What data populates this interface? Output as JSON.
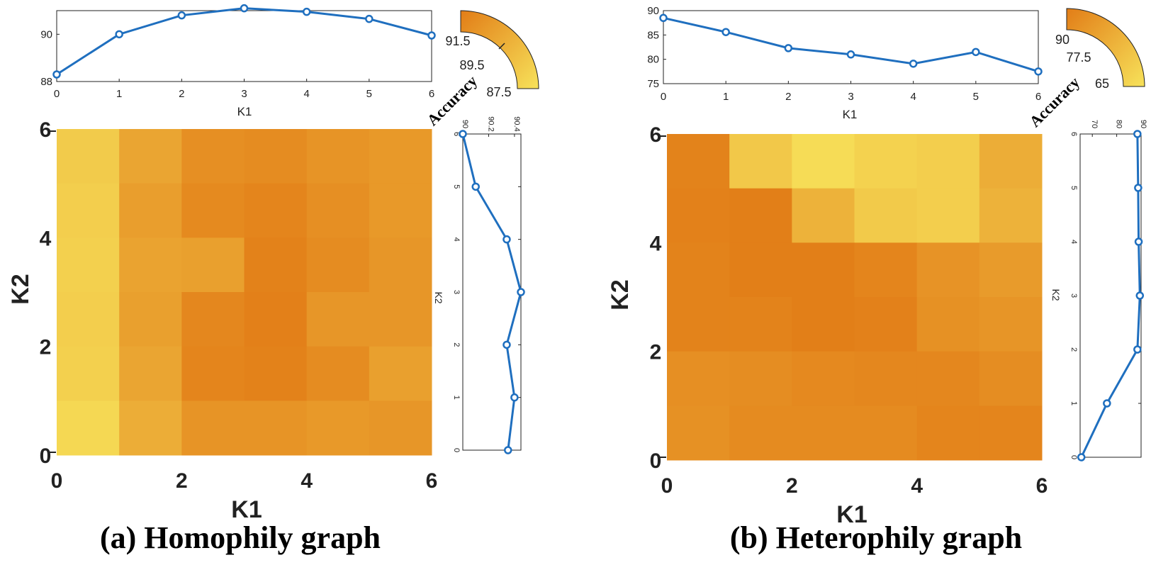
{
  "chart_data": [
    {
      "type": "heatmap",
      "panel": "a",
      "caption": "(a) Homophily graph",
      "xlabel": "K1",
      "ylabel": "K2",
      "x_ticks": [
        "0",
        "2",
        "4",
        "6"
      ],
      "y_ticks": [
        "0",
        "2",
        "4",
        "6"
      ],
      "color_range": [
        87.5,
        91.5
      ],
      "colorbar": {
        "label": "Accuracy",
        "ticks": [
          "91.5",
          "89.5",
          "87.5"
        ]
      },
      "grid": [
        [
          88.4,
          89.9,
          90.8,
          90.9,
          90.6,
          90.4
        ],
        [
          88.3,
          90.2,
          91.0,
          91.2,
          90.8,
          90.4
        ],
        [
          88.2,
          90.0,
          90.1,
          91.3,
          90.9,
          90.5
        ],
        [
          88.3,
          90.1,
          91.1,
          91.4,
          90.5,
          90.5
        ],
        [
          88.2,
          89.9,
          91.2,
          91.3,
          90.9,
          90.1
        ],
        [
          87.9,
          89.6,
          90.6,
          90.6,
          90.4,
          90.5
        ]
      ],
      "top_line": {
        "xlabel": "K1",
        "x": [
          0,
          1,
          2,
          3,
          4,
          5,
          6
        ],
        "y": [
          88.3,
          90.0,
          90.8,
          91.1,
          90.95,
          90.65,
          89.95
        ],
        "ylim": [
          88,
          91
        ],
        "y_ticks": [
          "88",
          "90"
        ],
        "x_ticks": [
          "0",
          "1",
          "2",
          "3",
          "4",
          "5",
          "6"
        ]
      },
      "side_line": {
        "ylabel": "K2",
        "k2": [
          0,
          1,
          2,
          3,
          4,
          5,
          6
        ],
        "acc": [
          90.35,
          90.4,
          90.34,
          90.45,
          90.34,
          90.1,
          90.0
        ],
        "alim": [
          90.0,
          90.45
        ],
        "a_ticks": [
          "90",
          "90.2",
          "90.4"
        ],
        "k_ticks": [
          "0",
          "1",
          "2",
          "3",
          "4",
          "5",
          "6"
        ]
      }
    },
    {
      "type": "heatmap",
      "panel": "b",
      "caption": "(b) Heterophily graph",
      "xlabel": "K1",
      "ylabel": "K2",
      "x_ticks": [
        "0",
        "2",
        "4",
        "6"
      ],
      "y_ticks": [
        "0",
        "2",
        "4",
        "6"
      ],
      "color_range": [
        65,
        90
      ],
      "colorbar": {
        "label": "Accuracy",
        "ticks": [
          "90",
          "77.5",
          "65"
        ]
      },
      "grid": [
        [
          88.5,
          71.5,
          66.5,
          69.0,
          70.0,
          78.0
        ],
        [
          89.0,
          89.5,
          77.0,
          71.0,
          70.0,
          77.0
        ],
        [
          88.5,
          89.5,
          89.5,
          88.0,
          84.5,
          82.5
        ],
        [
          88.5,
          88.5,
          89.5,
          89.0,
          85.0,
          84.0
        ],
        [
          85.5,
          86.0,
          87.0,
          87.5,
          87.5,
          86.0
        ],
        [
          85.0,
          86.5,
          86.5,
          86.5,
          88.0,
          88.0
        ]
      ],
      "top_line": {
        "xlabel": "K1",
        "x": [
          0,
          1,
          2,
          3,
          4,
          5,
          6
        ],
        "y": [
          88.5,
          85.6,
          82.3,
          81.0,
          79.1,
          81.5,
          77.5
        ],
        "ylim": [
          75,
          90
        ],
        "y_ticks": [
          "75",
          "80",
          "85",
          "90"
        ],
        "x_ticks": [
          "0",
          "1",
          "2",
          "3",
          "4",
          "5",
          "6"
        ]
      },
      "side_line": {
        "ylabel": "K2",
        "k2": [
          0,
          1,
          2,
          3,
          4,
          5,
          6
        ],
        "acc": [
          65.5,
          76.0,
          88.5,
          89.5,
          89.0,
          88.8,
          88.5
        ],
        "alim": [
          65,
          90
        ],
        "a_ticks": [
          "70",
          "80",
          "90"
        ],
        "k_ticks": [
          "0",
          "1",
          "2",
          "3",
          "4",
          "5",
          "6"
        ]
      }
    }
  ]
}
